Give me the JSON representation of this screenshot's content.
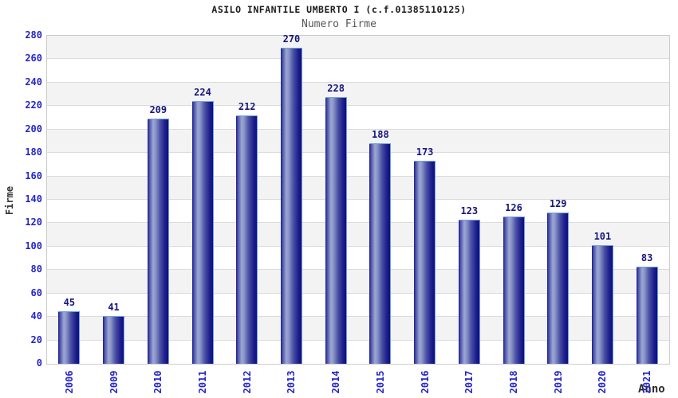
{
  "header": {
    "title": "ASILO INFANTILE UMBERTO I (c.f.01385110125)",
    "subtitle": "Numero Firme"
  },
  "chart_data": {
    "type": "bar",
    "title": "ASILO INFANTILE UMBERTO I (c.f.01385110125)",
    "subtitle": "Numero Firme",
    "xlabel": "Anno",
    "ylabel": "Firme",
    "categories": [
      "2006",
      "2009",
      "2010",
      "2011",
      "2012",
      "2013",
      "2014",
      "2015",
      "2016",
      "2017",
      "2018",
      "2019",
      "2020",
      "2021"
    ],
    "values": [
      45,
      41,
      209,
      224,
      212,
      270,
      228,
      188,
      173,
      123,
      126,
      129,
      101,
      83
    ],
    "ylim": [
      0,
      280
    ],
    "ytick_step": 20,
    "yticks": [
      0,
      20,
      40,
      60,
      80,
      100,
      120,
      140,
      160,
      180,
      200,
      220,
      240,
      260,
      280
    ],
    "grid": "horizontal gridlines with alternating shaded bands",
    "legend": "none",
    "x_tick_rotation_deg": 90
  },
  "colors": {
    "tick_label": "#2525cc",
    "value_label": "#15157d",
    "bar_edge_highlight": "#6f9fe6",
    "bar_dark": "#1d1d8c",
    "bar_darkest": "#0f0f7e",
    "bar_light": "#9da7d3",
    "band_gray": "#f3f3f3",
    "band_white": "#ffffff",
    "gridline": "#dcdcdc",
    "plot_border": "#cccccc",
    "title_color": "#1b1b1b",
    "subtitle_color": "#565656",
    "axis_title_color": "#333333",
    "background": "#ffffff"
  }
}
